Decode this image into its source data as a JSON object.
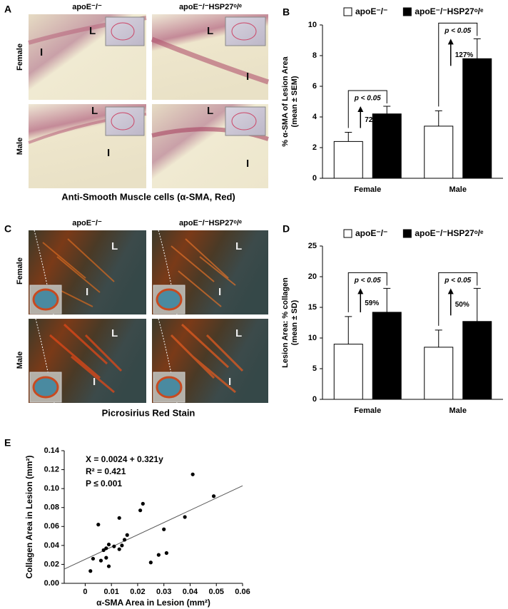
{
  "panels": [
    {
      "label": "A",
      "columns": [
        "apoE⁻/⁻",
        "apoE⁻/⁻HSP27ᵒ/ᵉ"
      ],
      "rows": [
        "Female",
        "Male"
      ],
      "tiles": [
        {
          "labels": [
            "L",
            "I"
          ]
        },
        {
          "labels": [
            "L",
            "I"
          ]
        },
        {
          "labels": [
            "L",
            "I"
          ]
        },
        {
          "labels": [
            "L",
            "I"
          ]
        }
      ],
      "caption": "Anti-Smooth Muscle cells (α-SMA, Red)"
    },
    {
      "label": "C",
      "columns": [
        "apoE⁻/⁻",
        "apoE⁻/⁻HSP27ᵒ/ᵉ"
      ],
      "rows": [
        "Female",
        "Male"
      ],
      "tiles": [
        {
          "labels": [
            "L",
            "I"
          ]
        },
        {
          "labels": [
            "L",
            "I"
          ]
        },
        {
          "labels": [
            "L",
            "I"
          ]
        },
        {
          "labels": [
            "L",
            "I"
          ]
        }
      ],
      "caption": "Picrosirius Red Stain"
    }
  ],
  "chart_data": [
    {
      "type": "bar",
      "label": "B",
      "ylabel": [
        "% α-SMA of Lesion Area",
        "(mean ± SEM)"
      ],
      "categories": [
        "Female",
        "Male"
      ],
      "series": [
        {
          "name": "apoE⁻/⁻",
          "color": "#ffffff",
          "values": [
            2.4,
            3.4
          ],
          "errors": [
            0.6,
            1.0
          ]
        },
        {
          "name": "apoE⁻/⁻HSP27ᵒ/ᵉ",
          "color": "#000000",
          "values": [
            4.2,
            7.8
          ],
          "errors": [
            0.5,
            1.3
          ]
        }
      ],
      "ylim": [
        0,
        10
      ],
      "yticks": [
        0,
        2,
        4,
        6,
        8,
        10
      ],
      "annotations": [
        {
          "p": "p < 0.05",
          "change": "72%"
        },
        {
          "p": "p < 0.05",
          "change": "127%"
        }
      ]
    },
    {
      "type": "bar",
      "label": "D",
      "ylabel": [
        "Lesion Area: % collagen",
        "(mean ± SD)"
      ],
      "categories": [
        "Female",
        "Male"
      ],
      "series": [
        {
          "name": "apoE⁻/⁻",
          "color": "#ffffff",
          "values": [
            9.0,
            8.5
          ],
          "errors": [
            4.5,
            2.8
          ]
        },
        {
          "name": "apoE⁻/⁻HSP27ᵒ/ᵉ",
          "color": "#000000",
          "values": [
            14.2,
            12.7
          ],
          "errors": [
            3.9,
            5.4
          ]
        }
      ],
      "ylim": [
        0,
        25
      ],
      "yticks": [
        0,
        5,
        10,
        15,
        20,
        25
      ],
      "annotations": [
        {
          "p": "p < 0.05",
          "change": "59%"
        },
        {
          "p": "p < 0.05",
          "change": "50%"
        }
      ]
    },
    {
      "type": "scatter",
      "label": "E",
      "xlabel": "α-SMA Area in Lesion (mm²)",
      "ylabel": "Collagen Area in Lesion (mm²)",
      "x": [
        0.002,
        0.003,
        0.005,
        0.006,
        0.007,
        0.008,
        0.008,
        0.009,
        0.009,
        0.011,
        0.013,
        0.013,
        0.014,
        0.015,
        0.016,
        0.021,
        0.022,
        0.025,
        0.028,
        0.03,
        0.031,
        0.038,
        0.041,
        0.049
      ],
      "y": [
        0.013,
        0.026,
        0.062,
        0.024,
        0.035,
        0.037,
        0.027,
        0.018,
        0.041,
        0.039,
        0.069,
        0.036,
        0.04,
        0.046,
        0.051,
        0.077,
        0.084,
        0.022,
        0.03,
        0.057,
        0.032,
        0.07,
        0.115,
        0.092
      ],
      "color": "#000000",
      "trendline": {
        "x": [
          -0.008,
          0.06
        ],
        "y": [
          0.015,
          0.103
        ]
      },
      "xlim": [
        -0.008,
        0.06
      ],
      "xticks": [
        0,
        0.01,
        0.02,
        0.03,
        0.04,
        0.05,
        0.06
      ],
      "ylim": [
        0,
        0.14
      ],
      "yticks": [
        {
          "value": 0,
          "label": "0.00"
        },
        0.02,
        0.04,
        0.06,
        0.08,
        {
          "value": 0.1,
          "label": "0.10"
        },
        0.12,
        0.14
      ],
      "annotations": [
        "X = 0.0024 + 0.321y",
        "R² = 0.421",
        "P ≤ 0.001"
      ]
    }
  ]
}
